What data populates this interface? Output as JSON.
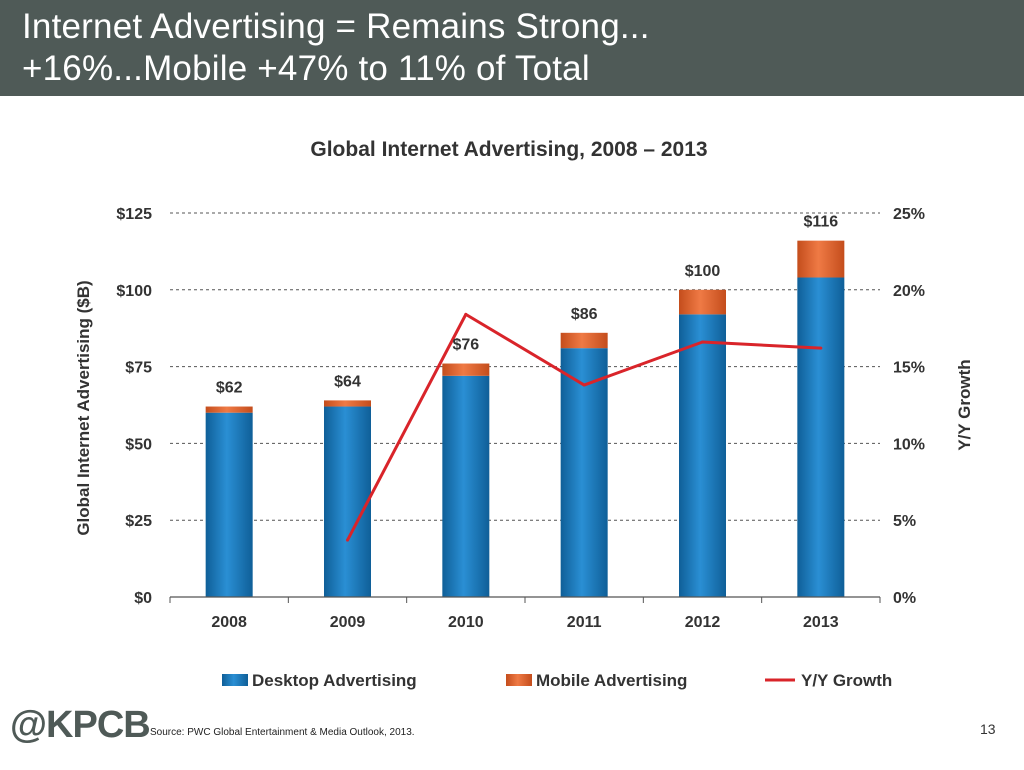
{
  "slide": {
    "title_line1": "Internet Advertising = Remains Strong...",
    "title_line2": "+16%...Mobile +47% to 11% of Total",
    "logo": "@KPCB",
    "source": "Source: PWC Global Entertainment & Media Outlook, 2013.",
    "page_number": "13"
  },
  "colors": {
    "header_bg": "#4f5a57",
    "desktop": "#1a7fc1",
    "mobile": "#e0622a",
    "growth": "#d9242a"
  },
  "chart_data": {
    "type": "bar",
    "title": "Global Internet Advertising, 2008 – 2013",
    "ylabel": "Global Internet Advertising ($B)",
    "y2label": "Y/Y Growth",
    "categories": [
      "2008",
      "2009",
      "2010",
      "2011",
      "2012",
      "2013"
    ],
    "ylim": [
      0,
      125
    ],
    "y2lim": [
      0,
      25
    ],
    "yticks": [
      "$0",
      "$25",
      "$50",
      "$75",
      "$100",
      "$125"
    ],
    "y2ticks": [
      "0%",
      "5%",
      "10%",
      "15%",
      "20%",
      "25%"
    ],
    "stacked": true,
    "series": [
      {
        "name": "Desktop Advertising",
        "kind": "bar",
        "values": [
          60,
          62,
          72,
          81,
          92,
          104
        ]
      },
      {
        "name": "Mobile Advertising",
        "kind": "bar",
        "values": [
          2,
          2,
          4,
          5,
          8,
          12
        ]
      },
      {
        "name": "Y/Y Growth",
        "kind": "line",
        "axis": "y2",
        "values": [
          null,
          3.7,
          18.4,
          13.8,
          16.6,
          16.2
        ]
      }
    ],
    "data_labels": [
      "$62",
      "$64",
      "$76",
      "$86",
      "$100",
      "$116"
    ],
    "grid": true,
    "legend": "bottom"
  }
}
